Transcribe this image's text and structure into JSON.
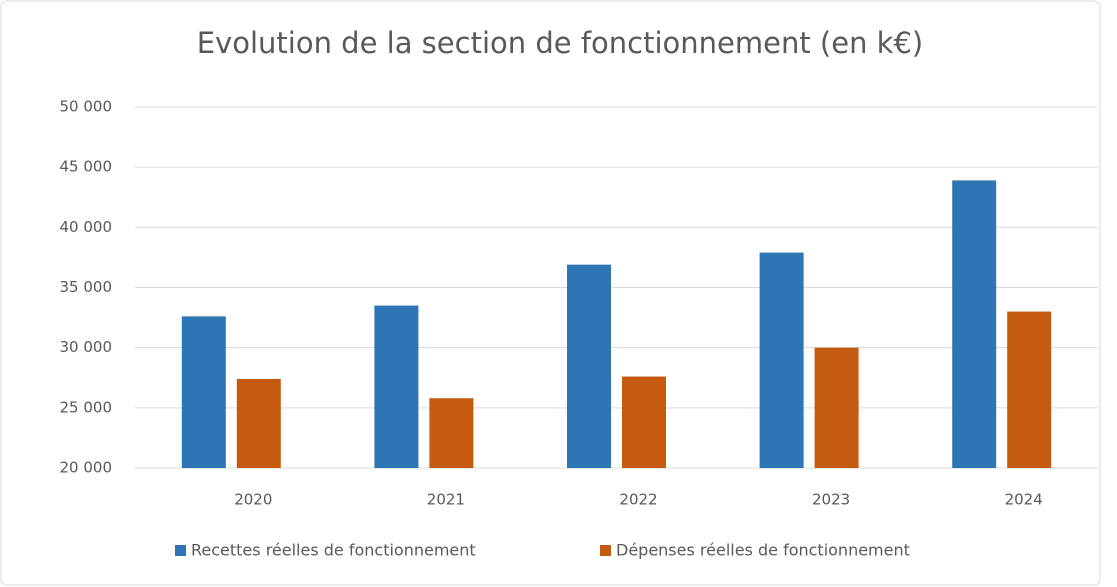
{
  "chart_data": {
    "type": "bar",
    "title": "Evolution de la section de fonctionnement (en k€)",
    "categories": [
      "2020",
      "2021",
      "2022",
      "2023",
      "2024"
    ],
    "series": [
      {
        "name": "Recettes réelles de fonctionnement",
        "color": "#2e75b6",
        "values": [
          32600,
          33500,
          36900,
          37900,
          43900
        ]
      },
      {
        "name": "Dépenses réelles de fonctionnement",
        "color": "#c55a11",
        "values": [
          27400,
          25800,
          27600,
          30000,
          33000
        ]
      }
    ],
    "ylim": [
      20000,
      50000
    ],
    "yticks": [
      {
        "value": 20000,
        "label": "20 000"
      },
      {
        "value": 25000,
        "label": "25 000"
      },
      {
        "value": 30000,
        "label": "30 000"
      },
      {
        "value": 35000,
        "label": "35 000"
      },
      {
        "value": 40000,
        "label": "40 000"
      },
      {
        "value": 45000,
        "label": "45 000"
      },
      {
        "value": 50000,
        "label": "50 000"
      }
    ],
    "grid": true,
    "legend": "bottom"
  }
}
